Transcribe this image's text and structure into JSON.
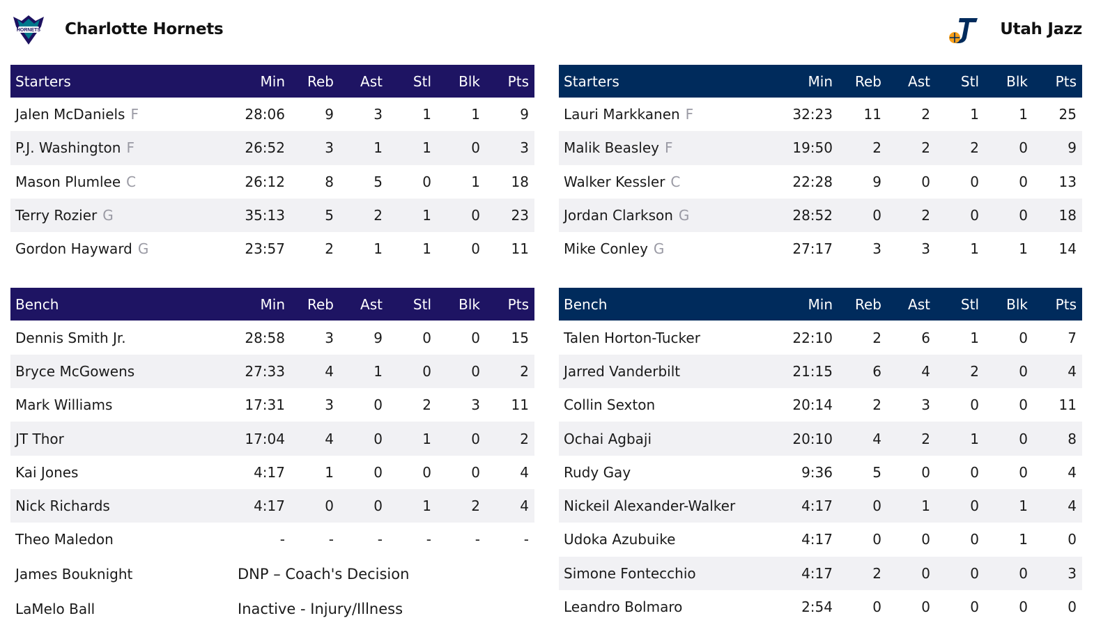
{
  "columns": [
    "Min",
    "Reb",
    "Ast",
    "Stl",
    "Blk",
    "Pts"
  ],
  "home": {
    "team_name": "Charlotte Hornets",
    "logo_icon": "hornets-logo-icon",
    "accent": "#1e1463",
    "starters_label": "Starters",
    "bench_label": "Bench",
    "starters": [
      {
        "name": "Jalen McDaniels",
        "pos": "F",
        "min": "28:06",
        "reb": "9",
        "ast": "3",
        "stl": "1",
        "blk": "1",
        "pts": "9"
      },
      {
        "name": "P.J. Washington",
        "pos": "F",
        "min": "26:52",
        "reb": "3",
        "ast": "1",
        "stl": "1",
        "blk": "0",
        "pts": "3"
      },
      {
        "name": "Mason Plumlee",
        "pos": "C",
        "min": "26:12",
        "reb": "8",
        "ast": "5",
        "stl": "0",
        "blk": "1",
        "pts": "18"
      },
      {
        "name": "Terry Rozier",
        "pos": "G",
        "min": "35:13",
        "reb": "5",
        "ast": "2",
        "stl": "1",
        "blk": "0",
        "pts": "23"
      },
      {
        "name": "Gordon Hayward",
        "pos": "G",
        "min": "23:57",
        "reb": "2",
        "ast": "1",
        "stl": "1",
        "blk": "0",
        "pts": "11"
      }
    ],
    "bench": [
      {
        "name": "Dennis Smith Jr.",
        "min": "28:58",
        "reb": "3",
        "ast": "9",
        "stl": "0",
        "blk": "0",
        "pts": "15"
      },
      {
        "name": "Bryce McGowens",
        "min": "27:33",
        "reb": "4",
        "ast": "1",
        "stl": "0",
        "blk": "0",
        "pts": "2"
      },
      {
        "name": "Mark Williams",
        "min": "17:31",
        "reb": "3",
        "ast": "0",
        "stl": "2",
        "blk": "3",
        "pts": "11"
      },
      {
        "name": "JT Thor",
        "min": "17:04",
        "reb": "4",
        "ast": "0",
        "stl": "1",
        "blk": "0",
        "pts": "2"
      },
      {
        "name": "Kai Jones",
        "min": "4:17",
        "reb": "1",
        "ast": "0",
        "stl": "0",
        "blk": "0",
        "pts": "4"
      },
      {
        "name": "Nick Richards",
        "min": "4:17",
        "reb": "0",
        "ast": "0",
        "stl": "1",
        "blk": "2",
        "pts": "4"
      },
      {
        "name": "Theo Maledon",
        "min": "-",
        "reb": "-",
        "ast": "-",
        "stl": "-",
        "blk": "-",
        "pts": "-"
      }
    ],
    "inactive": [
      {
        "name": "James Bouknight",
        "status": "DNP – Coach's Decision"
      },
      {
        "name": "LaMelo Ball",
        "status": "Inactive - Injury/Illness"
      }
    ]
  },
  "away": {
    "team_name": "Utah Jazz",
    "logo_icon": "jazz-logo-icon",
    "accent": "#002b5c",
    "starters_label": "Starters",
    "bench_label": "Bench",
    "starters": [
      {
        "name": "Lauri Markkanen",
        "pos": "F",
        "min": "32:23",
        "reb": "11",
        "ast": "2",
        "stl": "1",
        "blk": "1",
        "pts": "25"
      },
      {
        "name": "Malik Beasley",
        "pos": "F",
        "min": "19:50",
        "reb": "2",
        "ast": "2",
        "stl": "2",
        "blk": "0",
        "pts": "9"
      },
      {
        "name": "Walker Kessler",
        "pos": "C",
        "min": "22:28",
        "reb": "9",
        "ast": "0",
        "stl": "0",
        "blk": "0",
        "pts": "13"
      },
      {
        "name": "Jordan Clarkson",
        "pos": "G",
        "min": "28:52",
        "reb": "0",
        "ast": "2",
        "stl": "0",
        "blk": "0",
        "pts": "18"
      },
      {
        "name": "Mike Conley",
        "pos": "G",
        "min": "27:17",
        "reb": "3",
        "ast": "3",
        "stl": "1",
        "blk": "1",
        "pts": "14"
      }
    ],
    "bench": [
      {
        "name": "Talen Horton-Tucker",
        "min": "22:10",
        "reb": "2",
        "ast": "6",
        "stl": "1",
        "blk": "0",
        "pts": "7"
      },
      {
        "name": "Jarred Vanderbilt",
        "min": "21:15",
        "reb": "6",
        "ast": "4",
        "stl": "2",
        "blk": "0",
        "pts": "4"
      },
      {
        "name": "Collin Sexton",
        "min": "20:14",
        "reb": "2",
        "ast": "3",
        "stl": "0",
        "blk": "0",
        "pts": "11"
      },
      {
        "name": "Ochai Agbaji",
        "min": "20:10",
        "reb": "4",
        "ast": "2",
        "stl": "1",
        "blk": "0",
        "pts": "8"
      },
      {
        "name": "Rudy Gay",
        "min": "9:36",
        "reb": "5",
        "ast": "0",
        "stl": "0",
        "blk": "0",
        "pts": "4"
      },
      {
        "name": "Nickeil Alexander-Walker",
        "min": "4:17",
        "reb": "0",
        "ast": "1",
        "stl": "0",
        "blk": "1",
        "pts": "4"
      },
      {
        "name": "Udoka Azubuike",
        "min": "4:17",
        "reb": "0",
        "ast": "0",
        "stl": "0",
        "blk": "1",
        "pts": "0"
      },
      {
        "name": "Simone Fontecchio",
        "min": "4:17",
        "reb": "2",
        "ast": "0",
        "stl": "0",
        "blk": "0",
        "pts": "3"
      },
      {
        "name": "Leandro Bolmaro",
        "min": "2:54",
        "reb": "0",
        "ast": "0",
        "stl": "0",
        "blk": "0",
        "pts": "0"
      }
    ],
    "inactive": []
  }
}
